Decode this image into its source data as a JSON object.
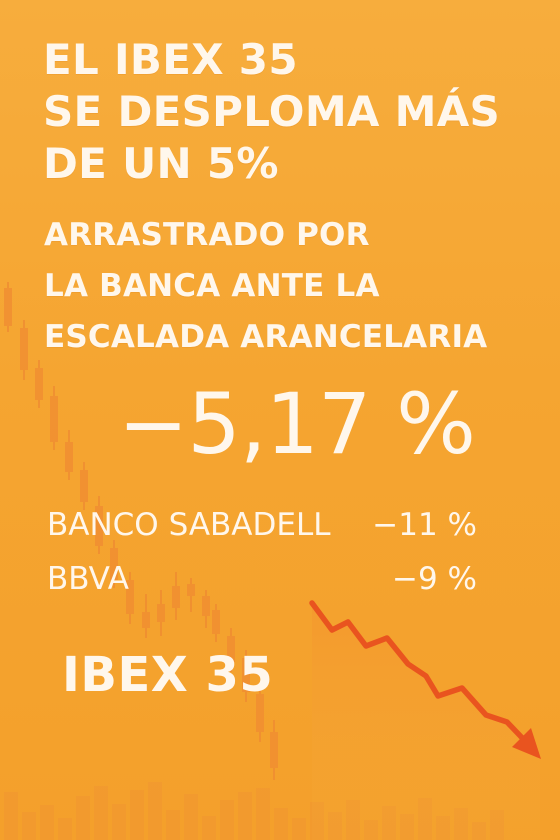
{
  "colors": {
    "background_top": "#f7ad3d",
    "background_bottom": "#f4a02b",
    "text": "#fff7ec",
    "chart_red": "#e9541f",
    "chart_orange": "#f28a2c"
  },
  "headline": {
    "line1": "EL IBEX 35",
    "line2": "SE DESPLOMA MÁS",
    "line3": "DE UN 5%"
  },
  "subhead": {
    "line1": "ARRASTRADO POR",
    "line2": "LA BANCA ANTE LA",
    "line3": "ESCALADA ARANCELARIA"
  },
  "ibex_change": "−5,17 %",
  "stocks": [
    {
      "name": "BANCO SABADELL",
      "change": "−11 %"
    },
    {
      "name": "BBVA",
      "change": "−9 %"
    }
  ],
  "brand": "IBEX 35",
  "decorations": {
    "candlestick_chart_icon": "candlestick-chart-icon",
    "trend_arrow_icon": "downward-trend-arrow-icon"
  }
}
